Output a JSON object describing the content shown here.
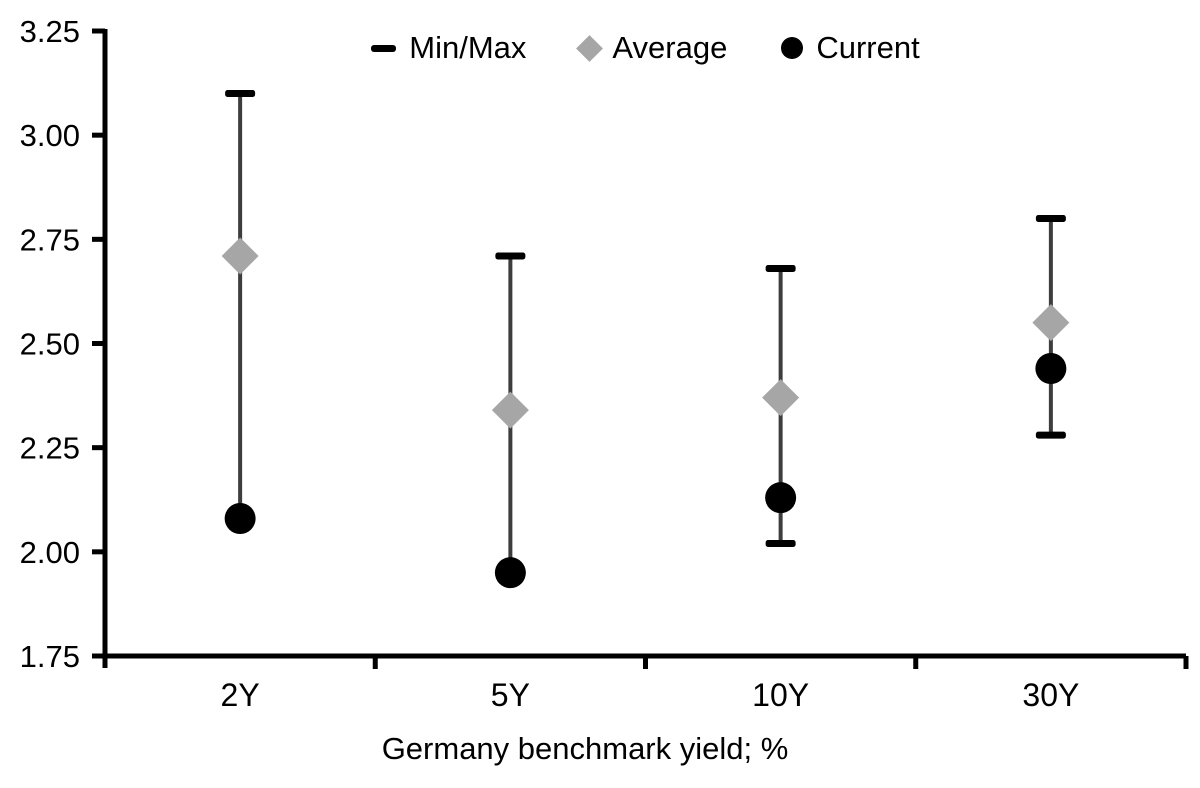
{
  "chart_data": {
    "type": "range-scatter",
    "title": "Germany benchmark yield; %",
    "categories": [
      "2Y",
      "5Y",
      "10Y",
      "30Y"
    ],
    "series": [
      {
        "name": "Min/Max",
        "marker": "dash",
        "color": "#000000",
        "max": [
          3.1,
          2.71,
          2.68,
          2.8
        ],
        "min": [
          2.08,
          1.95,
          2.02,
          2.28
        ]
      },
      {
        "name": "Average",
        "marker": "diamond",
        "color": "#a6a6a6",
        "values": [
          2.71,
          2.34,
          2.37,
          2.55
        ]
      },
      {
        "name": "Current",
        "marker": "circle",
        "color": "#000000",
        "values": [
          2.08,
          1.95,
          2.13,
          2.44
        ]
      }
    ],
    "y_axis": {
      "min": 1.75,
      "max": 3.25,
      "step": 0.25,
      "tick_labels": [
        "3.25",
        "3.00",
        "2.75",
        "2.50",
        "2.25",
        "2.00",
        "1.75"
      ]
    },
    "x_axis": {
      "label": "Germany benchmark yield; %",
      "tick_labels": [
        "2Y",
        "5Y",
        "10Y",
        "30Y"
      ]
    },
    "legend": {
      "position": "top",
      "entries": [
        "Min/Max",
        "Average",
        "Current"
      ]
    },
    "grid": false,
    "colors": {
      "range_line": "#3d3d3d",
      "cap": "#000000",
      "average_marker": "#a6a6a6",
      "current_marker": "#000000",
      "axis": "#000000",
      "text": "#000000",
      "background": "#ffffff"
    }
  }
}
